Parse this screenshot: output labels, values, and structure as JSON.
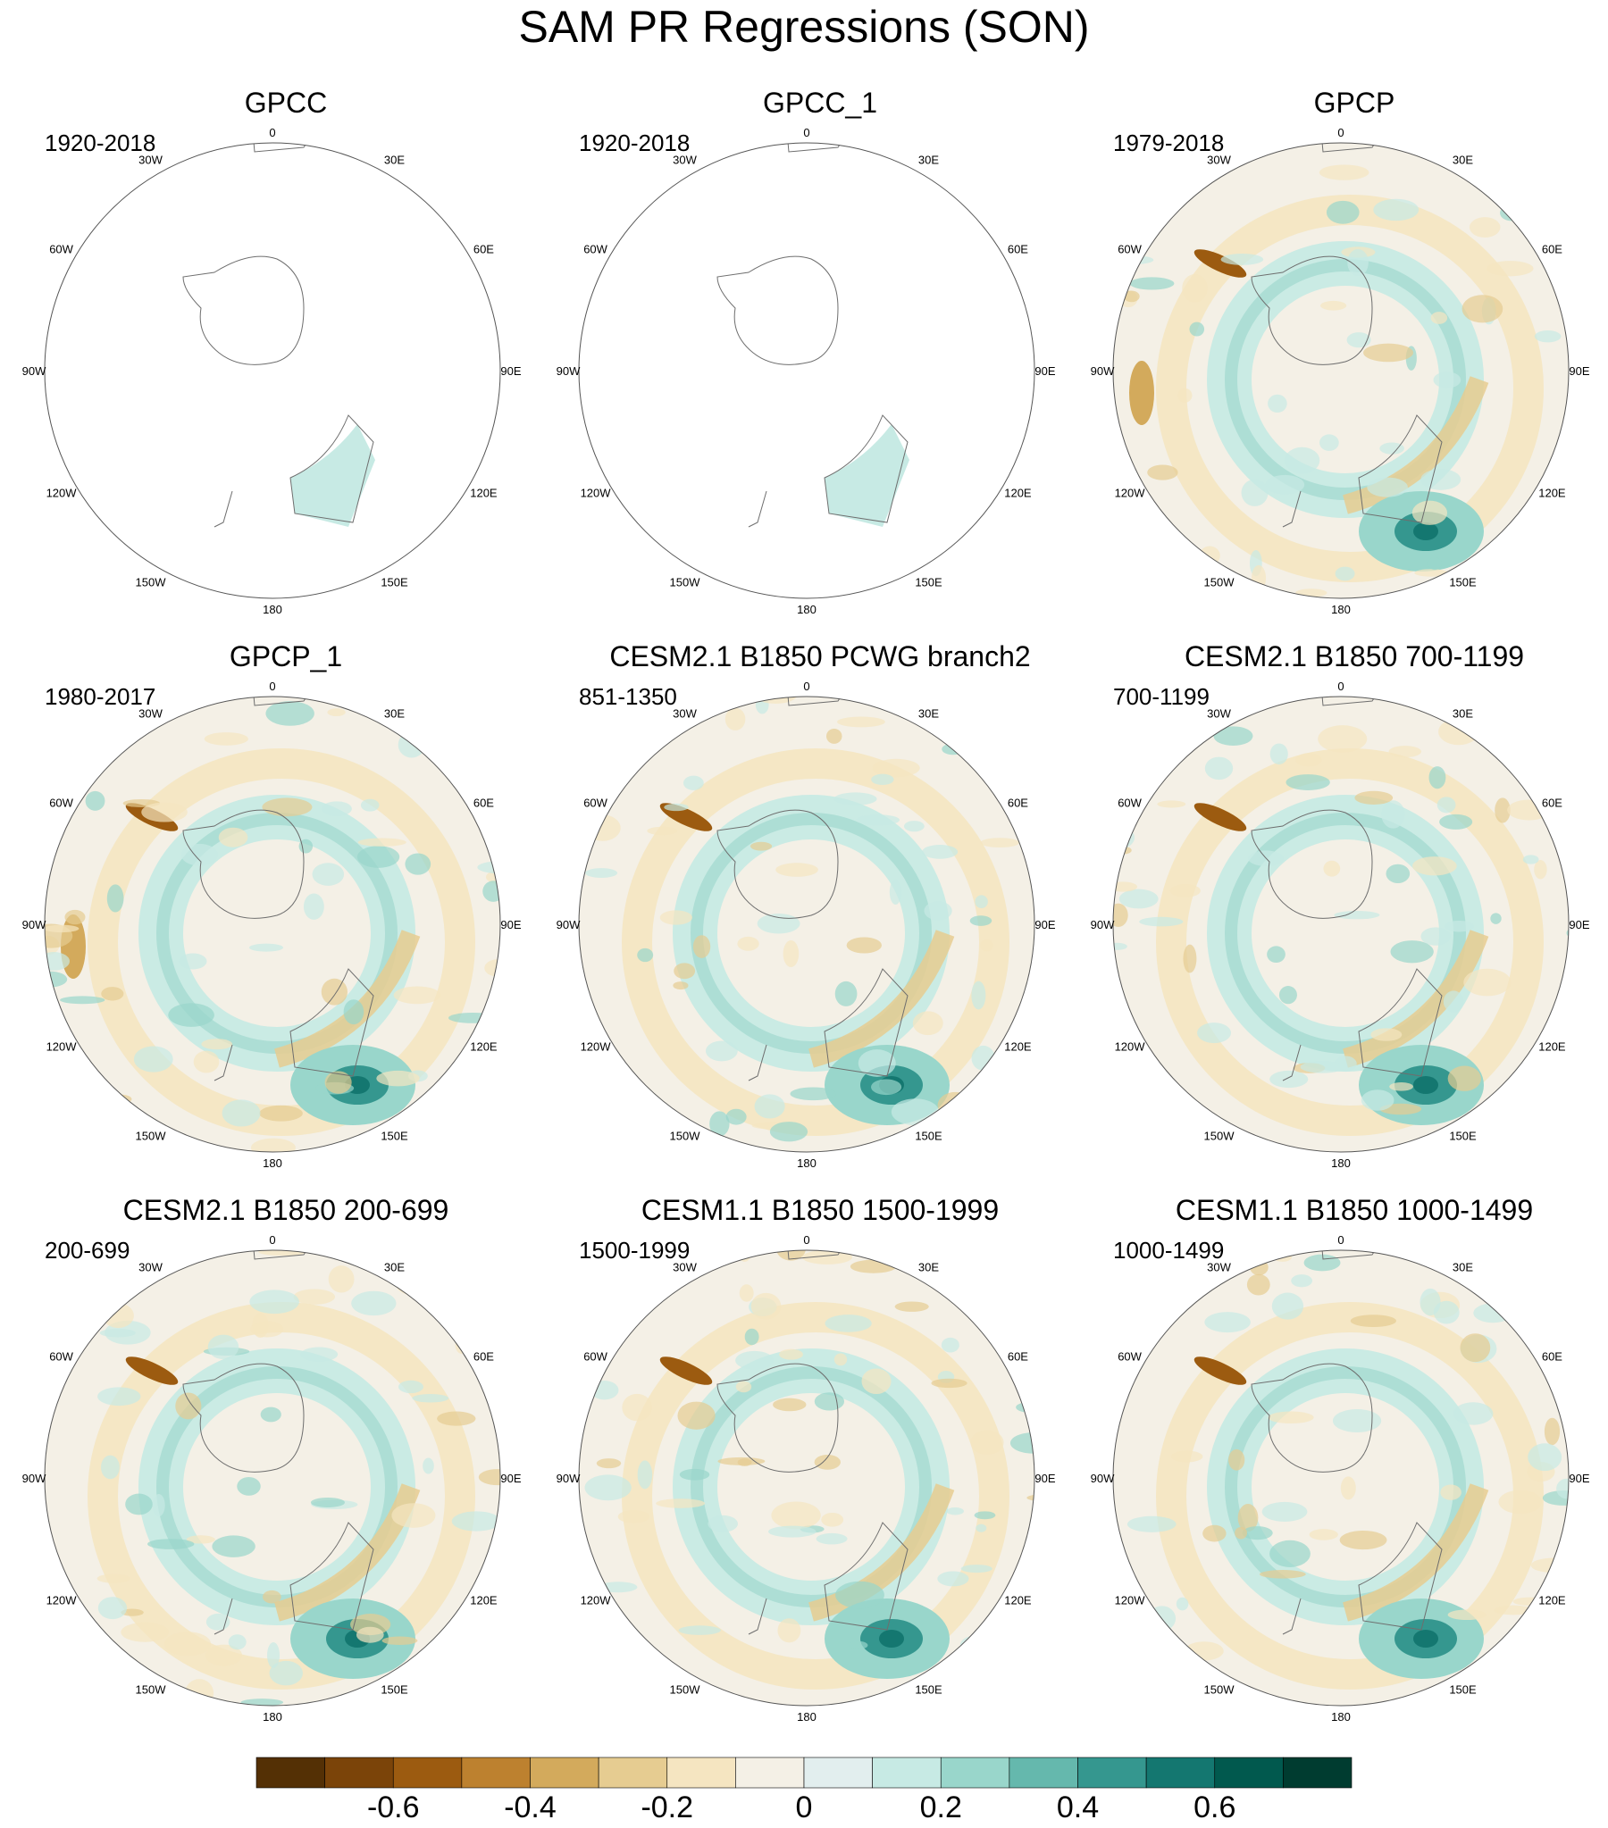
{
  "title": "SAM PR Regressions (SON)",
  "panels": [
    {
      "title": "GPCC",
      "years": "1920-2018",
      "kind": "obs_land"
    },
    {
      "title": "GPCC_1",
      "years": "1920-2018",
      "kind": "obs_land"
    },
    {
      "title": "GPCP",
      "years": "1979-2018",
      "kind": "obs_full"
    },
    {
      "title": "GPCP_1",
      "years": "1980-2017",
      "kind": "obs_full"
    },
    {
      "title": "CESM2.1 B1850 PCWG branch2",
      "years": "851-1350",
      "kind": "model"
    },
    {
      "title": "CESM2.1 B1850 700-1199",
      "years": "700-1199",
      "kind": "model"
    },
    {
      "title": "CESM2.1 B1850 200-699",
      "years": "200-699",
      "kind": "model"
    },
    {
      "title": "CESM1.1 B1850 1500-1999",
      "years": "1500-1999",
      "kind": "model"
    },
    {
      "title": "CESM1.1 B1850 1000-1499",
      "years": "1000-1499",
      "kind": "model"
    }
  ],
  "lon_labels": [
    "0",
    "30E",
    "60E",
    "90E",
    "120E",
    "150E",
    "180",
    "150W",
    "120W",
    "90W",
    "60W",
    "30W"
  ],
  "chart_data": {
    "type": "heatmap",
    "projection": "south polar stereographic",
    "colorbar": {
      "levels": [
        -0.7,
        -0.6,
        -0.5,
        -0.4,
        -0.3,
        -0.2,
        -0.1,
        0,
        0.1,
        0.2,
        0.3,
        0.4,
        0.5,
        0.6,
        0.7
      ],
      "tick_labels": [
        "-0.6",
        "-0.4",
        "-0.2",
        "0",
        "0.2",
        "0.4",
        "0.6"
      ],
      "colors": [
        "#543005",
        "#7b4409",
        "#9c5b10",
        "#bd812f",
        "#d3aa5c",
        "#e6cc91",
        "#f5e5c1",
        "#f4f0e6",
        "#e2eeee",
        "#c7eae4",
        "#99d6cb",
        "#65b8ad",
        "#35978f",
        "#147770",
        "#01594e",
        "#003c30"
      ]
    }
  }
}
